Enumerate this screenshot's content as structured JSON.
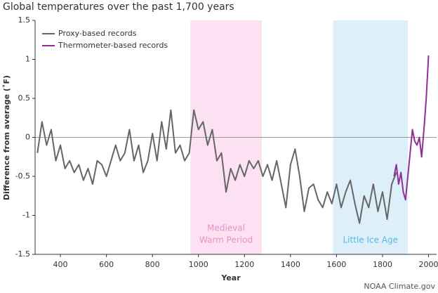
{
  "chart_data": {
    "type": "line",
    "title": "Global temperatures over the past 1,700 years",
    "x_label": "Year",
    "y_label": "Difference from average (˚F)",
    "source": "NOAA Climate.gov",
    "xlim": [
      290,
      2035
    ],
    "ylim": [
      -1.5,
      1.5
    ],
    "xticks": [
      400,
      600,
      800,
      1000,
      1200,
      1400,
      1600,
      1800,
      2000
    ],
    "yticks": [
      -1.5,
      -1,
      -0.5,
      0,
      0.5,
      1,
      1.5
    ],
    "zero_line": true,
    "legend": "top-left",
    "shaded_regions": [
      {
        "lines": [
          "Medieval",
          "Warm Period"
        ],
        "range": [
          965,
          1275
        ],
        "color": "#fbe1f1",
        "label_color": "#e890cc"
      },
      {
        "lines": [
          "Little Ice Age"
        ],
        "range": [
          1585,
          1910
        ],
        "color": "#ddeff9",
        "label_color": "#5bb5e6"
      }
    ],
    "series": [
      {
        "name": "Proxy-based records",
        "color": "#666666",
        "x": [
          300,
          320,
          340,
          360,
          380,
          400,
          420,
          440,
          460,
          480,
          500,
          520,
          540,
          560,
          580,
          600,
          620,
          640,
          660,
          680,
          700,
          720,
          740,
          760,
          780,
          800,
          820,
          840,
          860,
          880,
          900,
          920,
          940,
          960,
          980,
          1000,
          1020,
          1040,
          1060,
          1080,
          1100,
          1120,
          1140,
          1160,
          1180,
          1200,
          1220,
          1240,
          1260,
          1280,
          1300,
          1320,
          1340,
          1360,
          1380,
          1400,
          1420,
          1440,
          1460,
          1480,
          1500,
          1520,
          1540,
          1560,
          1580,
          1600,
          1620,
          1640,
          1660,
          1680,
          1700,
          1720,
          1740,
          1760,
          1780,
          1800,
          1820,
          1840,
          1860
        ],
        "values": [
          -0.2,
          0.2,
          -0.1,
          0.1,
          -0.3,
          -0.1,
          -0.4,
          -0.3,
          -0.45,
          -0.35,
          -0.55,
          -0.4,
          -0.6,
          -0.3,
          -0.35,
          -0.5,
          -0.3,
          -0.1,
          -0.3,
          -0.2,
          0.1,
          -0.3,
          -0.1,
          -0.45,
          -0.3,
          0.05,
          -0.3,
          0.2,
          -0.15,
          0.35,
          -0.2,
          -0.1,
          -0.3,
          -0.2,
          0.35,
          0.1,
          0.2,
          -0.1,
          0.1,
          -0.3,
          -0.2,
          -0.7,
          -0.4,
          -0.55,
          -0.35,
          -0.5,
          -0.3,
          -0.4,
          -0.3,
          -0.5,
          -0.35,
          -0.55,
          -0.3,
          -0.6,
          -0.9,
          -0.35,
          -0.15,
          -0.5,
          -0.95,
          -0.65,
          -0.6,
          -0.8,
          -0.9,
          -0.7,
          -0.85,
          -0.6,
          -0.9,
          -0.7,
          -0.55,
          -0.85,
          -1.1,
          -0.75,
          -0.9,
          -0.6,
          -0.95,
          -0.7,
          -1.05,
          -0.6,
          -0.45
        ]
      },
      {
        "name": "Thermometer-based records",
        "color": "#912f96",
        "x": [
          1850,
          1860,
          1870,
          1880,
          1890,
          1900,
          1910,
          1920,
          1930,
          1940,
          1950,
          1960,
          1970,
          1980,
          1990,
          2000
        ],
        "values": [
          -0.5,
          -0.35,
          -0.6,
          -0.45,
          -0.7,
          -0.8,
          -0.5,
          -0.2,
          0.1,
          -0.05,
          -0.1,
          0.0,
          -0.25,
          0.1,
          0.5,
          1.05
        ]
      }
    ]
  }
}
